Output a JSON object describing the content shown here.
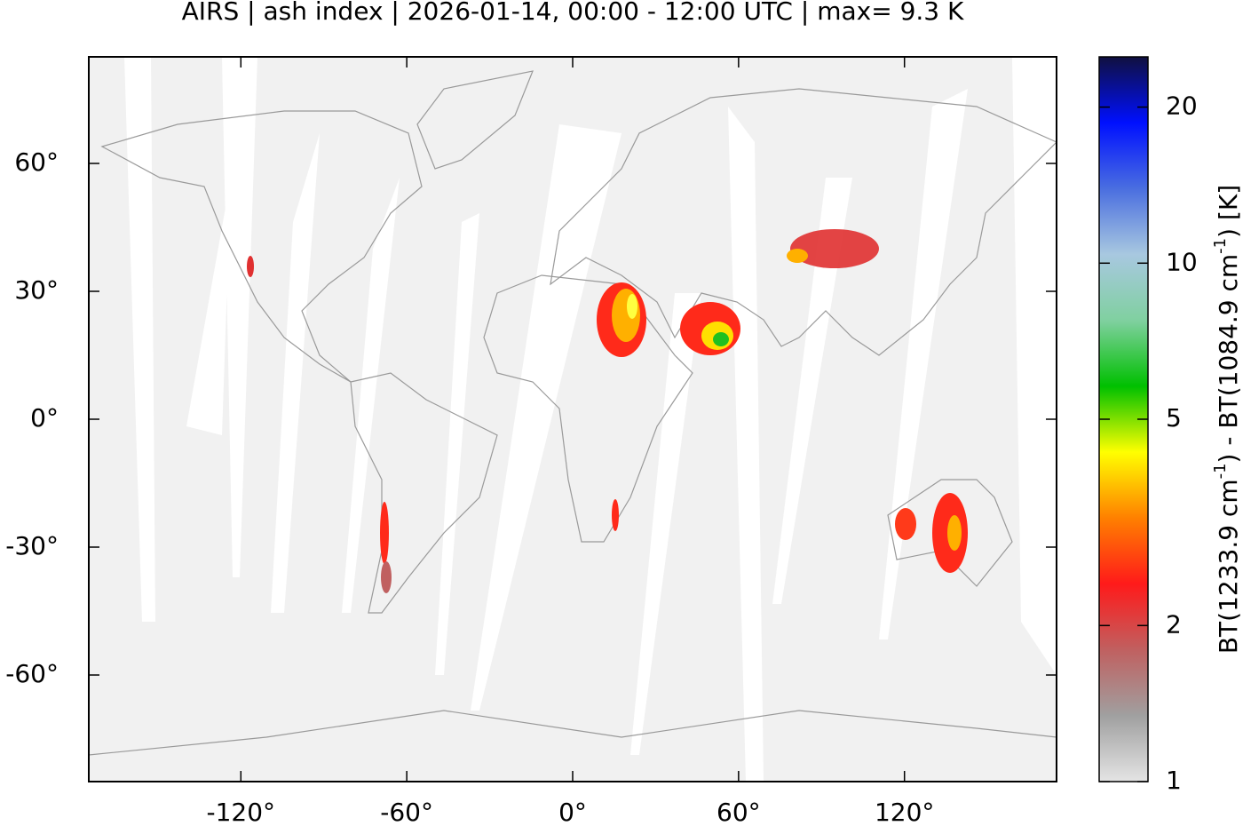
{
  "chart_data": {
    "type": "map",
    "title": "AIRS | ash index | 2026-01-14, 00:00 - 12:00 UTC | max= 9.3 K",
    "xlim": [
      -175,
      175
    ],
    "ylim": [
      -85,
      85
    ],
    "xticks": [
      {
        "value": -120,
        "label": "-120°"
      },
      {
        "value": -60,
        "label": "-60°"
      },
      {
        "value": 0,
        "label": "0°"
      },
      {
        "value": 60,
        "label": "60°"
      },
      {
        "value": 120,
        "label": "120°"
      }
    ],
    "yticks": [
      {
        "value": 60,
        "label": "60°"
      },
      {
        "value": 30,
        "label": "30°"
      },
      {
        "value": 0,
        "label": "0°"
      },
      {
        "value": -30,
        "label": "-30°"
      },
      {
        "value": -60,
        "label": "-60°"
      }
    ],
    "colorbar": {
      "scale": "log",
      "lim": [
        1,
        25
      ],
      "ticks": [
        1,
        2,
        5,
        10,
        20
      ],
      "colors": [
        "#e4e4e4",
        "#a0a0a0",
        "#c06060",
        "#ff1a1a",
        "#ff8000",
        "#ffff00",
        "#00c000",
        "#80d0a0",
        "#a8c8e0",
        "#4a6ee0",
        "#0010ff",
        "#101040"
      ],
      "label": [
        "BT(1233.9 cm",
        "-1",
        ") - BT(1084.9 cm",
        "-1",
        ") [K]"
      ]
    }
  }
}
